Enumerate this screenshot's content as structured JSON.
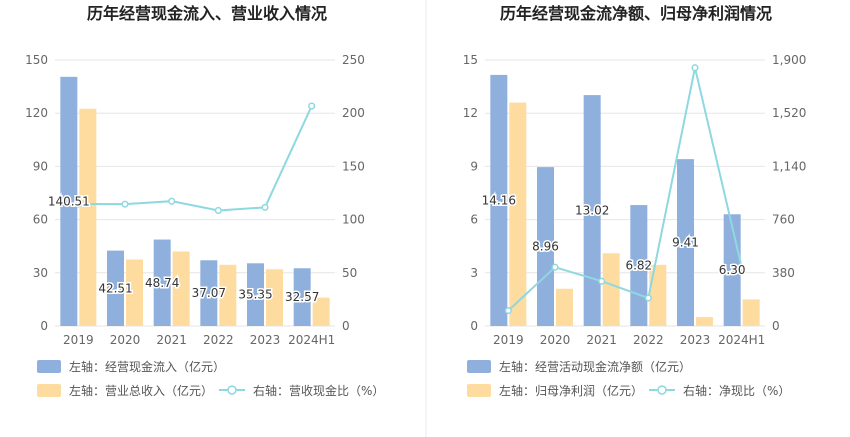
{
  "colors": {
    "bar_left": "#8fb0dd",
    "bar_right": "#fedc9f",
    "line": "#8ed8e0"
  },
  "chart_data": [
    {
      "type": "bar",
      "title": "历年经营现金流入、营业收入情况",
      "categories": [
        "2019",
        "2020",
        "2021",
        "2022",
        "2023",
        "2024H1"
      ],
      "left_axis": {
        "ticks": [
          "0",
          "30",
          "60",
          "90",
          "120",
          "150"
        ],
        "ylim": [
          0,
          150
        ]
      },
      "right_axis": {
        "ticks": [
          "0",
          "50",
          "100",
          "150",
          "200",
          "250"
        ],
        "ylim": [
          0,
          250
        ]
      },
      "series": [
        {
          "name": "左轴：经营现金流入（亿元）",
          "axis": "left",
          "kind": "bar",
          "values": [
            140.51,
            42.51,
            48.74,
            37.07,
            35.35,
            32.57
          ],
          "labels": [
            "140.51",
            "42.51",
            "48.74",
            "37.07",
            "35.35",
            "32.57"
          ]
        },
        {
          "name": "左轴：营业总收入（亿元）",
          "axis": "left",
          "kind": "bar",
          "values": [
            122.5,
            37.5,
            42.0,
            34.5,
            32.0,
            16.0
          ]
        },
        {
          "name": "右轴：营收现金比（%）",
          "axis": "right",
          "kind": "line",
          "values": [
            114.7,
            114.5,
            117.3,
            108.6,
            111.5,
            206.7
          ]
        }
      ],
      "legend_placement": "bottom"
    },
    {
      "type": "bar",
      "title": "历年经营现金流净额、归母净利润情况",
      "categories": [
        "2019",
        "2020",
        "2021",
        "2022",
        "2023",
        "2024H1"
      ],
      "left_axis": {
        "ticks": [
          "0",
          "3",
          "6",
          "9",
          "12",
          "15"
        ],
        "ylim": [
          0,
          15
        ]
      },
      "right_axis": {
        "ticks": [
          "0",
          "380",
          "760",
          "1,140",
          "1,520",
          "1,900"
        ],
        "ylim": [
          0,
          1900
        ]
      },
      "series": [
        {
          "name": "左轴：经营活动现金流净额（亿元）",
          "axis": "left",
          "kind": "bar",
          "values": [
            14.16,
            8.96,
            13.02,
            6.82,
            9.41,
            6.3
          ],
          "labels": [
            "14.16",
            "8.96",
            "13.02",
            "6.82",
            "9.41",
            "6.30"
          ]
        },
        {
          "name": "左轴：归母净利润（亿元）",
          "axis": "left",
          "kind": "bar",
          "values": [
            12.6,
            2.1,
            4.1,
            3.45,
            0.5,
            1.5
          ]
        },
        {
          "name": "右轴：净现比（%）",
          "axis": "right",
          "kind": "line",
          "values": [
            110,
            420,
            320,
            200,
            1845,
            420
          ]
        }
      ],
      "legend_placement": "bottom"
    }
  ]
}
